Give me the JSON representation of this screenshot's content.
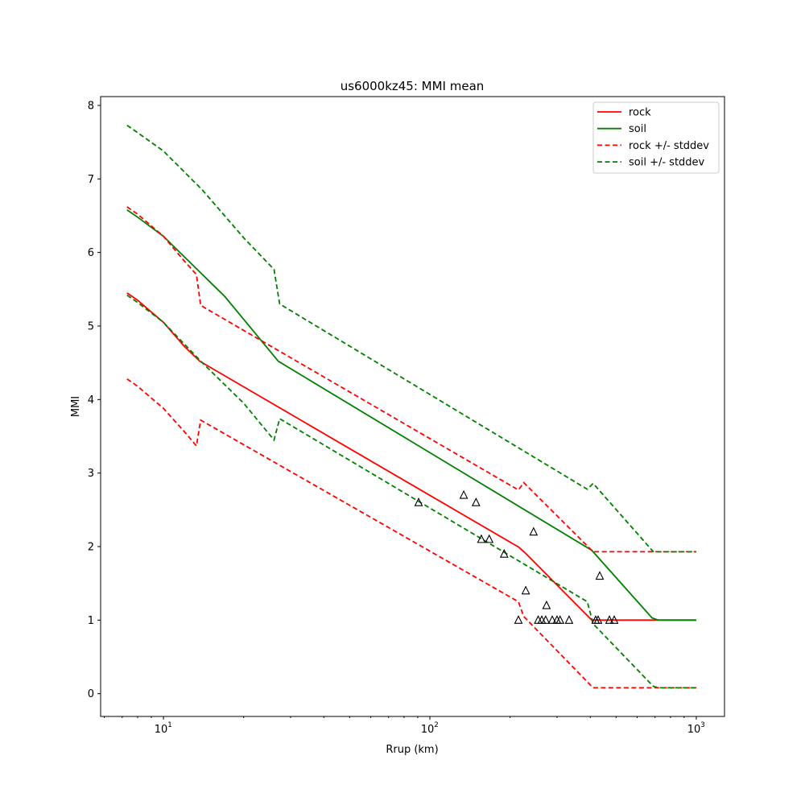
{
  "chart_data": {
    "type": "line",
    "title": "us6000kz45: MMI mean",
    "xlabel": "Rrup (km)",
    "ylabel": "MMI",
    "xscale": "log",
    "xlim": [
      5.81,
      1276
    ],
    "ylim": [
      -0.31,
      8.12
    ],
    "xticks": [
      {
        "value": 10,
        "base": "10",
        "exp": "1"
      },
      {
        "value": 100,
        "base": "10",
        "exp": "2"
      },
      {
        "value": 1000,
        "base": "10",
        "exp": "3"
      }
    ],
    "yticks": [
      0,
      1,
      2,
      3,
      4,
      5,
      6,
      7,
      8
    ],
    "grid": false,
    "legend_position": "top-right",
    "series": [
      {
        "name": "rock",
        "color": "#ff0000",
        "dash": false,
        "x": [
          7.3,
          8,
          10,
          12,
          13.7,
          216,
          230,
          405,
          1000
        ],
        "y": [
          5.45,
          5.35,
          5.05,
          4.72,
          4.52,
          1.99,
          1.9,
          1.0,
          1.0
        ]
      },
      {
        "name": "soil",
        "color": "#008000",
        "dash": false,
        "x": [
          7.3,
          8,
          10,
          14,
          17,
          27,
          405,
          682,
          720,
          1000
        ],
        "y": [
          6.58,
          6.48,
          6.22,
          5.7,
          5.4,
          4.52,
          1.95,
          1.03,
          1.0,
          1.0
        ]
      },
      {
        "name": "rock +/- stddev",
        "color": "#ff0000",
        "dash": true,
        "x": [
          7.3,
          8,
          10,
          12,
          13.3,
          13.8,
          215,
          225,
          410,
          1000
        ],
        "y": [
          6.62,
          6.52,
          6.22,
          5.88,
          5.7,
          5.28,
          2.77,
          2.87,
          1.93,
          1.93
        ]
      },
      {
        "name": "rock +/- stddev (lower)",
        "color": "#ff0000",
        "dash": true,
        "x": [
          7.3,
          8,
          10,
          12,
          13.3,
          13.8,
          215,
          225,
          410,
          1000
        ],
        "y": [
          4.28,
          4.18,
          3.88,
          3.56,
          3.37,
          3.72,
          1.25,
          1.05,
          0.08,
          0.08
        ]
      },
      {
        "name": "soil +/- stddev",
        "color": "#008000",
        "dash": true,
        "x": [
          7.3,
          8,
          10,
          14,
          20,
          26,
          27.3,
          390,
          410,
          690,
          1000
        ],
        "y": [
          7.73,
          7.63,
          7.38,
          6.85,
          6.2,
          5.77,
          5.3,
          2.78,
          2.86,
          1.93,
          1.93
        ]
      },
      {
        "name": "soil +/- stddev (lower)",
        "color": "#008000",
        "dash": true,
        "x": [
          7.3,
          8,
          10,
          14,
          20,
          26,
          27.3,
          390,
          410,
          690,
          720,
          1000
        ],
        "y": [
          5.42,
          5.32,
          5.05,
          4.5,
          3.95,
          3.45,
          3.74,
          1.25,
          0.95,
          0.1,
          0.08,
          0.08
        ]
      }
    ],
    "observations": {
      "marker": "triangle",
      "x": [
        90.7,
        134,
        149,
        156,
        167,
        190,
        245,
        229,
        274,
        434,
        215,
        255,
        263,
        272,
        288,
        300,
        308,
        333,
        419,
        428,
        472,
        492
      ],
      "y": [
        2.6,
        2.7,
        2.6,
        2.1,
        2.1,
        1.9,
        2.2,
        1.4,
        1.2,
        1.6,
        1,
        1,
        1,
        1,
        1,
        1,
        1,
        1,
        1,
        1,
        1,
        1
      ]
    },
    "legend": [
      "rock",
      "soil",
      "rock +/- stddev",
      "soil +/- stddev"
    ]
  }
}
